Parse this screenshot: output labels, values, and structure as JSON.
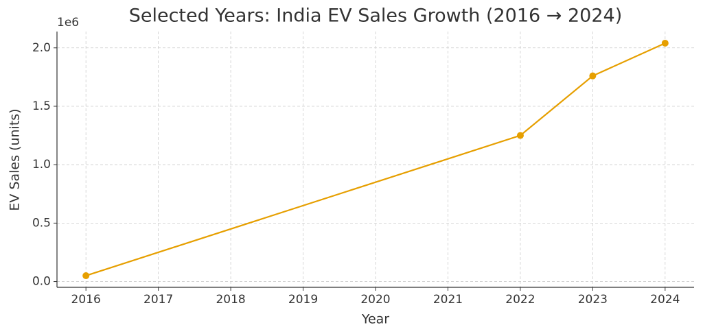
{
  "chart_data": {
    "type": "line",
    "title": "Selected Years: India EV Sales Growth (2016 → 2024)",
    "x_label": "Year",
    "y_label": "EV Sales (units)",
    "y_offset_label": "1e6",
    "x": [
      2016,
      2022,
      2023,
      2024
    ],
    "series": [
      {
        "color": "#e69f00",
        "values": [
          50000,
          1250000,
          1760000,
          2040000
        ]
      }
    ],
    "xlim": [
      2015.6,
      2024.4
    ],
    "xticks": [
      2016,
      2017,
      2018,
      2019,
      2020,
      2021,
      2022,
      2023,
      2024
    ],
    "ylim": [
      -49500,
      2139500
    ],
    "yticks": [
      {
        "value": 0,
        "label": "0.0"
      },
      {
        "value": 500000,
        "label": "0.5"
      },
      {
        "value": 1000000,
        "label": "1.0"
      },
      {
        "value": 1500000,
        "label": "1.5"
      },
      {
        "value": 2000000,
        "label": "2.0"
      }
    ],
    "grid": true
  }
}
